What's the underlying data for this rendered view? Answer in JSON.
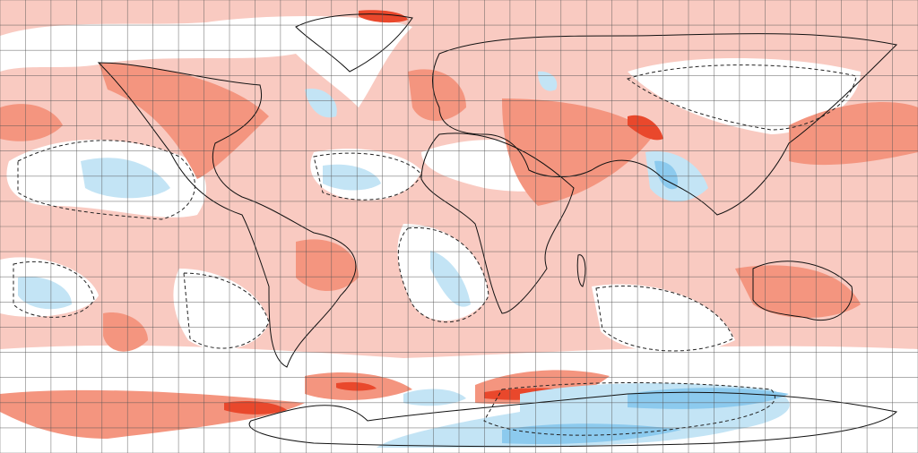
{
  "map": {
    "projection": "equirectangular",
    "grid_step_degrees": 10,
    "colors": {
      "background_anomaly": "#f9cac1",
      "neutral": "#ffffff",
      "warm_medium": "#f4957f",
      "warm_strong": "#e9482c",
      "cool_light": "#c3e4f5",
      "cool_medium": "#8ccaee"
    }
  }
}
